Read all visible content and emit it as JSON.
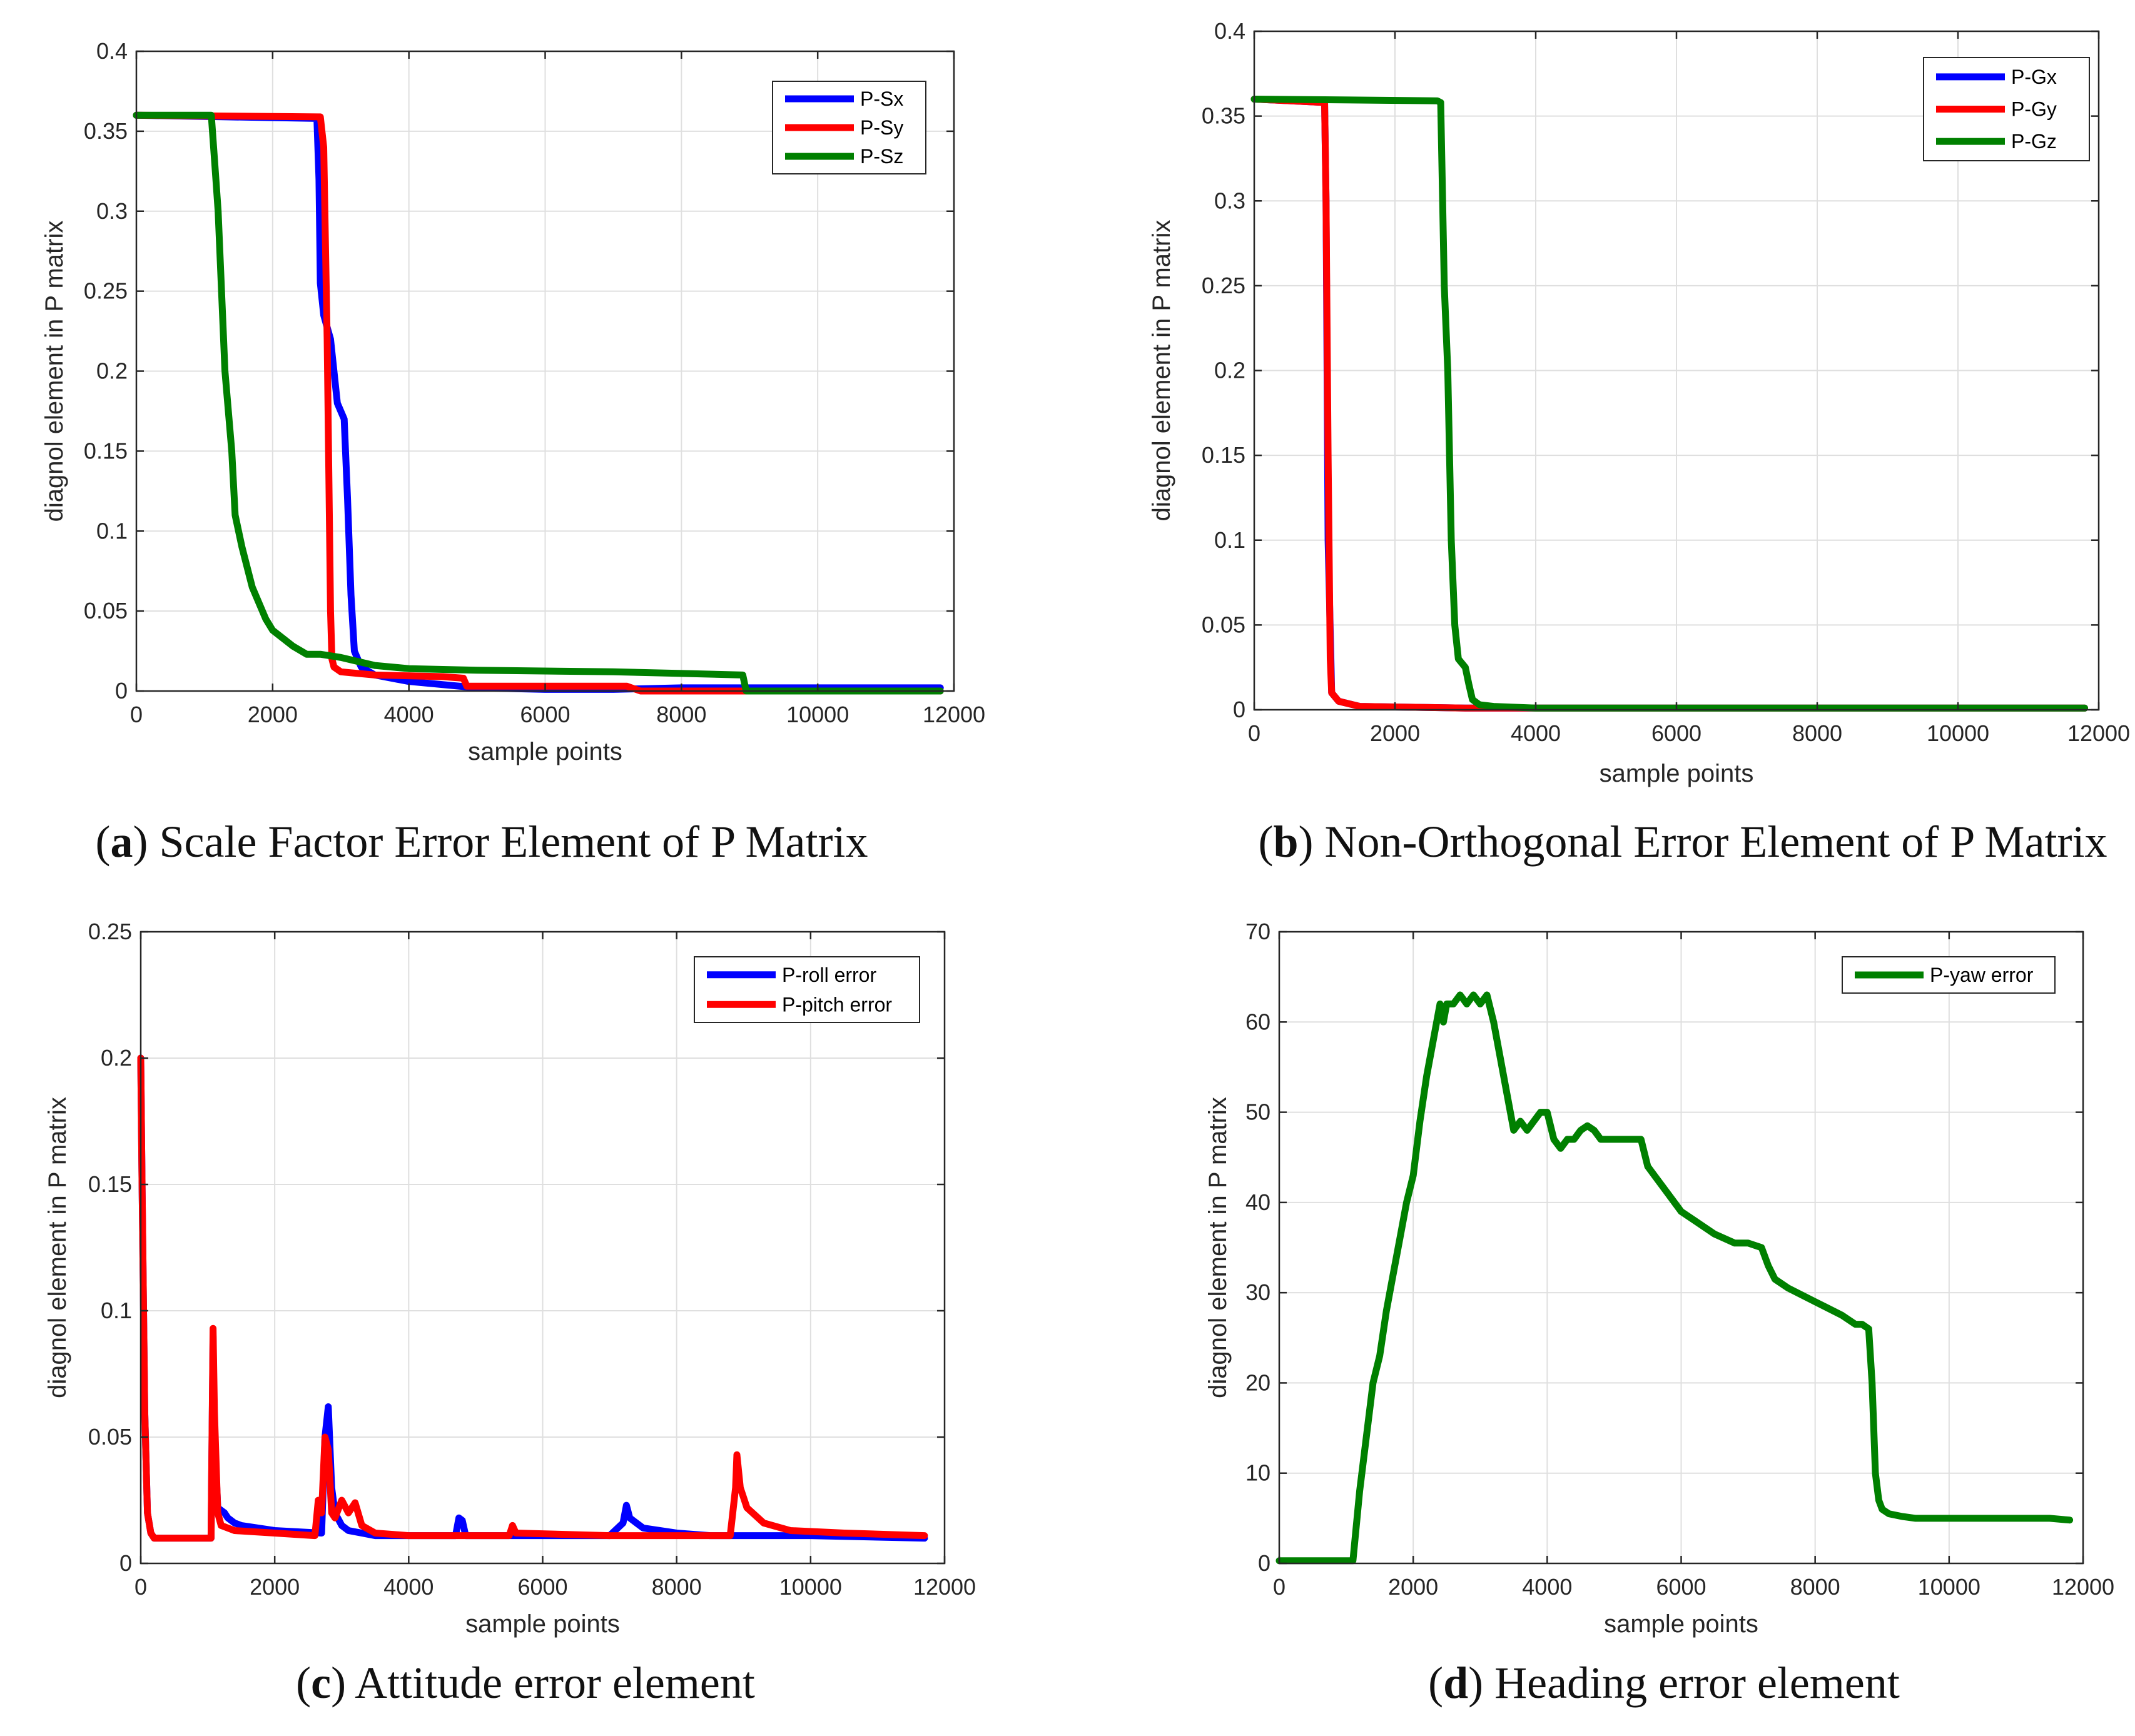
{
  "colors": {
    "blue": "#0000ff",
    "red": "#ff0000",
    "green": "#008000"
  },
  "chart_data": [
    {
      "id": "a",
      "type": "line",
      "caption": {
        "letter": "a",
        "text": " Scale Factor Error Element of P Matrix"
      },
      "xlabel": "sample points",
      "ylabel": "diagnol element in P matrix",
      "xlim": [
        0,
        12000
      ],
      "ylim": [
        0,
        0.4
      ],
      "xticks": [
        0,
        2000,
        4000,
        6000,
        8000,
        10000,
        12000
      ],
      "xtick_labels": [
        "0",
        "2000",
        "4000",
        "6000",
        "8000",
        "10000",
        "12000"
      ],
      "yticks": [
        0,
        0.05,
        0.1,
        0.15,
        0.2,
        0.25,
        0.3,
        0.35,
        0.4
      ],
      "ytick_labels": [
        "0",
        "0.05",
        "0.1",
        "0.15",
        "0.2",
        "0.25",
        "0.3",
        "0.35",
        "0.4"
      ],
      "legend_position": "top-right",
      "series": [
        {
          "name": "P-Sx",
          "color": "#0000ff",
          "x": [
            0,
            2650,
            2680,
            2700,
            2750,
            2850,
            2950,
            3050,
            3100,
            3150,
            3200,
            3300,
            3500,
            4000,
            5000,
            6000,
            7000,
            8000,
            9000,
            11800
          ],
          "y": [
            0.36,
            0.358,
            0.32,
            0.255,
            0.235,
            0.22,
            0.18,
            0.17,
            0.12,
            0.06,
            0.025,
            0.015,
            0.01,
            0.006,
            0.002,
            0.001,
            0.001,
            0.002,
            0.002,
            0.002
          ]
        },
        {
          "name": "P-Sy",
          "color": "#ff0000",
          "x": [
            0,
            2700,
            2750,
            2800,
            2850,
            2870,
            2900,
            3000,
            3500,
            4500,
            4800,
            4850,
            7200,
            7400,
            11800
          ],
          "y": [
            0.36,
            0.359,
            0.34,
            0.22,
            0.05,
            0.02,
            0.015,
            0.012,
            0.01,
            0.009,
            0.008,
            0.003,
            0.003,
            0,
            0
          ]
        },
        {
          "name": "P-Sz",
          "color": "#008000",
          "x": [
            0,
            1100,
            1150,
            1200,
            1300,
            1400,
            1450,
            1550,
            1700,
            1900,
            2000,
            2300,
            2500,
            2700,
            3000,
            3500,
            4000,
            5000,
            7000,
            8000,
            8900,
            8950,
            11800
          ],
          "y": [
            0.36,
            0.36,
            0.33,
            0.3,
            0.2,
            0.15,
            0.11,
            0.09,
            0.065,
            0.045,
            0.038,
            0.028,
            0.023,
            0.023,
            0.021,
            0.016,
            0.014,
            0.013,
            0.012,
            0.011,
            0.01,
            0,
            0
          ]
        }
      ]
    },
    {
      "id": "b",
      "type": "line",
      "caption": {
        "letter": "b",
        "text": " Non-Orthogonal Error Element of P Matrix"
      },
      "xlabel": "sample points",
      "ylabel": "diagnol element in P matrix",
      "xlim": [
        0,
        12000
      ],
      "ylim": [
        0,
        0.4
      ],
      "xticks": [
        0,
        2000,
        4000,
        6000,
        8000,
        10000,
        12000
      ],
      "xtick_labels": [
        "0",
        "2000",
        "4000",
        "6000",
        "8000",
        "10000",
        "12000"
      ],
      "yticks": [
        0,
        0.05,
        0.1,
        0.15,
        0.2,
        0.25,
        0.3,
        0.35,
        0.4
      ],
      "ytick_labels": [
        "0",
        "0.05",
        "0.1",
        "0.15",
        "0.2",
        "0.25",
        "0.3",
        "0.35",
        "0.4"
      ],
      "legend_position": "top-right",
      "series": [
        {
          "name": "P-Gx",
          "color": "#0000ff",
          "x": [
            0,
            1000,
            1020,
            1050,
            1100,
            1200,
            1500,
            3000,
            11800
          ],
          "y": [
            0.36,
            0.358,
            0.3,
            0.1,
            0.01,
            0.005,
            0.002,
            0.001,
            0.001
          ]
        },
        {
          "name": "P-Gy",
          "color": "#ff0000",
          "x": [
            0,
            1000,
            1020,
            1050,
            1080,
            1100,
            1200,
            1500,
            3000,
            11800
          ],
          "y": [
            0.36,
            0.358,
            0.3,
            0.15,
            0.03,
            0.01,
            0.005,
            0.002,
            0.001,
            0.001
          ]
        },
        {
          "name": "P-Gz",
          "color": "#008000",
          "x": [
            0,
            2600,
            2650,
            2700,
            2750,
            2800,
            2850,
            2900,
            3000,
            3050,
            3100,
            3200,
            3400,
            4000,
            11800
          ],
          "y": [
            0.36,
            0.359,
            0.358,
            0.25,
            0.2,
            0.1,
            0.05,
            0.03,
            0.025,
            0.015,
            0.006,
            0.003,
            0.002,
            0.001,
            0.001
          ]
        }
      ]
    },
    {
      "id": "c",
      "type": "line",
      "caption": {
        "letter": "c",
        "text": " Attitude error element"
      },
      "xlabel": "",
      "ylabel": "diagnol element in P matrix",
      "xlim": [
        0,
        12000
      ],
      "ylim": [
        0,
        0.25
      ],
      "xticks": [
        0,
        2000,
        4000,
        6000,
        8000,
        10000,
        12000
      ],
      "xtick_labels": [
        "0",
        "2000",
        "4000",
        "6000",
        "8000",
        "10000",
        "12000"
      ],
      "yticks": [
        0,
        0.05,
        0.1,
        0.15,
        0.2,
        0.25
      ],
      "ytick_labels": [
        "0",
        "0.05",
        "0.1",
        "0.15",
        "0.2",
        "0.25"
      ],
      "legend_position": "top-right",
      "series": [
        {
          "name": "P-roll error",
          "color": "#0000ff",
          "x": [
            0,
            20,
            60,
            100,
            150,
            200,
            1050,
            1080,
            1100,
            1150,
            1250,
            1300,
            1400,
            1500,
            2000,
            2700,
            2750,
            2800,
            2850,
            2900,
            3000,
            3100,
            3300,
            3500,
            4000,
            4700,
            4750,
            4800,
            4850,
            5000,
            7000,
            7200,
            7250,
            7300,
            7400,
            7500,
            8000,
            8500,
            9000,
            10000,
            11700
          ],
          "y": [
            0.2,
            0.15,
            0.06,
            0.02,
            0.012,
            0.01,
            0.01,
            0.09,
            0.05,
            0.022,
            0.02,
            0.018,
            0.016,
            0.015,
            0.013,
            0.012,
            0.05,
            0.062,
            0.03,
            0.02,
            0.015,
            0.013,
            0.012,
            0.011,
            0.011,
            0.011,
            0.018,
            0.017,
            0.011,
            0.011,
            0.011,
            0.016,
            0.023,
            0.018,
            0.016,
            0.014,
            0.012,
            0.011,
            0.011,
            0.011,
            0.01
          ]
        },
        {
          "name": "P-pitch error",
          "color": "#ff0000",
          "x": [
            0,
            20,
            60,
            100,
            150,
            200,
            1050,
            1080,
            1100,
            1150,
            1200,
            1400,
            2000,
            2600,
            2650,
            2700,
            2750,
            2800,
            2850,
            2900,
            3000,
            3100,
            3200,
            3300,
            3500,
            4000,
            5000,
            5500,
            5550,
            5600,
            7000,
            8800,
            8880,
            8900,
            8950,
            9050,
            9300,
            9700,
            10500,
            11700
          ],
          "y": [
            0.2,
            0.15,
            0.06,
            0.02,
            0.012,
            0.01,
            0.01,
            0.093,
            0.06,
            0.02,
            0.015,
            0.013,
            0.012,
            0.011,
            0.025,
            0.02,
            0.05,
            0.045,
            0.02,
            0.018,
            0.025,
            0.02,
            0.024,
            0.015,
            0.012,
            0.011,
            0.011,
            0.011,
            0.015,
            0.012,
            0.011,
            0.011,
            0.03,
            0.043,
            0.03,
            0.022,
            0.016,
            0.013,
            0.012,
            0.011
          ]
        }
      ]
    },
    {
      "id": "d",
      "type": "line",
      "caption": {
        "letter": "d",
        "text": " Heading error element"
      },
      "xlabel": "sample points",
      "ylabel": "diagnol element in P matrix",
      "xlim": [
        0,
        12000
      ],
      "ylim": [
        0,
        70
      ],
      "xticks": [
        0,
        2000,
        4000,
        6000,
        8000,
        10000,
        12000
      ],
      "xtick_labels": [
        "0",
        "2000",
        "4000",
        "6000",
        "8000",
        "10000",
        "12000"
      ],
      "yticks": [
        0,
        10,
        20,
        30,
        40,
        50,
        60,
        70
      ],
      "ytick_labels": [
        "0",
        "10",
        "20",
        "30",
        "40",
        "50",
        "60",
        "70"
      ],
      "legend_position": "top-right",
      "series": [
        {
          "name": "P-yaw error",
          "color": "#008000",
          "x": [
            0,
            1100,
            1200,
            1300,
            1400,
            1500,
            1600,
            1700,
            1800,
            1900,
            2000,
            2100,
            2200,
            2300,
            2400,
            2450,
            2500,
            2600,
            2700,
            2800,
            2900,
            3000,
            3100,
            3200,
            3300,
            3400,
            3500,
            3600,
            3700,
            3800,
            3900,
            4000,
            4100,
            4200,
            4300,
            4400,
            4500,
            4600,
            4700,
            4800,
            4900,
            5000,
            5200,
            5400,
            5500,
            5600,
            5800,
            6000,
            6200,
            6500,
            6800,
            7000,
            7200,
            7300,
            7400,
            7600,
            8000,
            8400,
            8600,
            8700,
            8800,
            8850,
            8900,
            8950,
            9000,
            9100,
            9300,
            9500,
            10000,
            10500,
            11000,
            11500,
            11800
          ],
          "y": [
            0.3,
            0.3,
            8,
            14,
            20,
            23,
            28,
            32,
            36,
            40,
            43,
            49,
            54,
            58,
            62,
            60,
            62,
            62,
            63,
            62,
            63,
            62,
            63,
            60,
            56,
            52,
            48,
            49,
            48,
            49,
            50,
            50,
            47,
            46,
            47,
            47,
            48,
            48.5,
            48,
            47,
            47,
            47,
            47,
            47,
            44,
            43,
            41,
            39,
            38,
            36.5,
            35.5,
            35.5,
            35,
            33,
            31.5,
            30.5,
            29,
            27.5,
            26.5,
            26.5,
            26,
            20,
            10,
            7,
            6,
            5.5,
            5.2,
            5,
            5,
            5,
            5,
            5,
            4.8
          ]
        }
      ]
    }
  ]
}
